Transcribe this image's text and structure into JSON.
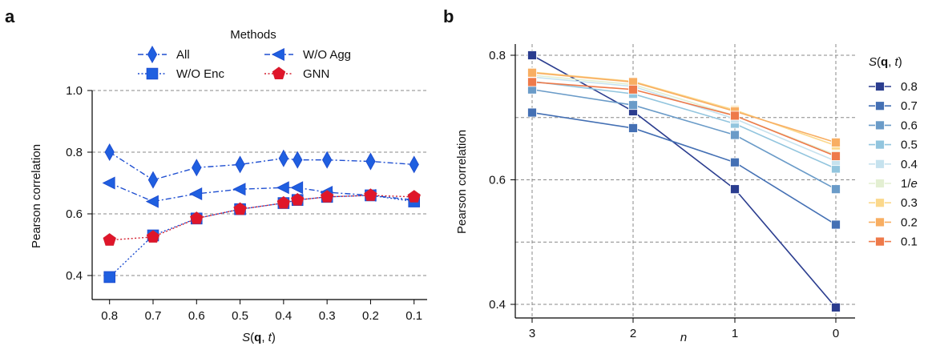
{
  "chart_data": [
    {
      "panel": "a",
      "type": "line",
      "xlabel_parts": [
        "S",
        "(",
        "q",
        ", ",
        "t",
        ")"
      ],
      "ylabel": "Pearson correlation",
      "x_reversed": true,
      "xlim": [
        0.84,
        0.07
      ],
      "ylim": [
        0.3,
        1.0
      ],
      "xticks": [
        0.8,
        0.7,
        0.6,
        0.5,
        0.4,
        0.3,
        0.2,
        0.1
      ],
      "xtick_labels": [
        "0.8",
        "0.7",
        "0.6",
        "0.5",
        "0.4",
        "0.3",
        "0.2",
        "0.1"
      ],
      "yticks": [
        0.4,
        0.6,
        0.8,
        1.0
      ],
      "ytick_labels": [
        "0.4",
        "0.6",
        "0.8",
        "1.0"
      ],
      "grid": "horizontal dashed",
      "x": [
        0.8,
        0.7,
        0.6,
        0.5,
        0.4,
        0.368,
        0.3,
        0.2,
        0.1
      ],
      "legend_title": "Methods",
      "legend_placement": "top",
      "series": [
        {
          "name": "All",
          "marker": "diamond",
          "dash": "dashdot",
          "color": "#1f4fd1",
          "fill": "#1f5fe0",
          "values": [
            0.8,
            0.71,
            0.75,
            0.76,
            0.78,
            0.775,
            0.775,
            0.77,
            0.76
          ]
        },
        {
          "name": "W/O Agg",
          "marker": "triangle-left",
          "dash": "dashdot",
          "color": "#1f4fd1",
          "fill": "#1f5fe0",
          "values": [
            0.7,
            0.64,
            0.665,
            0.68,
            0.685,
            0.685,
            0.67,
            0.66,
            0.645
          ]
        },
        {
          "name": "W/O Enc",
          "marker": "square",
          "dash": "dotted",
          "color": "#1f4fd1",
          "fill": "#1f5fe0",
          "values": [
            0.395,
            0.53,
            0.585,
            0.615,
            0.635,
            0.645,
            0.655,
            0.66,
            0.64
          ]
        },
        {
          "name": "GNN",
          "marker": "pentagon",
          "dash": "dotted",
          "color": "#d41f2f",
          "fill": "#e0152a",
          "values": [
            0.515,
            0.525,
            0.585,
            0.615,
            0.635,
            0.645,
            0.655,
            0.66,
            0.655
          ]
        }
      ]
    },
    {
      "panel": "b",
      "type": "line",
      "xlabel": "n",
      "ylabel": "Pearson correlation",
      "x_reversed": true,
      "xlim": [
        3.1,
        -0.1
      ],
      "ylim": [
        0.38,
        0.81
      ],
      "xticks": [
        3,
        2,
        1,
        0
      ],
      "xtick_labels": [
        "3",
        "2",
        "1",
        "0"
      ],
      "yticks": [
        0.4,
        0.6,
        0.8
      ],
      "ytick_labels": [
        "0.4",
        "0.6",
        "0.8"
      ],
      "grid_y": [
        0.4,
        0.5,
        0.6,
        0.7,
        0.8
      ],
      "grid": "both dashed",
      "x": [
        3,
        2,
        1,
        0
      ],
      "legend_title_parts": [
        "S",
        "(",
        "q",
        ", ",
        "t",
        ")"
      ],
      "legend_placement": "right",
      "series": [
        {
          "name": "0.8",
          "color": "#2b3d8f",
          "values": [
            0.8,
            0.71,
            0.585,
            0.395
          ]
        },
        {
          "name": "0.7",
          "color": "#4470b4",
          "values": [
            0.708,
            0.683,
            0.628,
            0.528
          ]
        },
        {
          "name": "0.6",
          "color": "#6a9bc8",
          "values": [
            0.745,
            0.72,
            0.672,
            0.585
          ]
        },
        {
          "name": "0.5",
          "color": "#92c5de",
          "values": [
            0.758,
            0.738,
            0.69,
            0.618
          ]
        },
        {
          "name": "0.4",
          "color": "#c6e2ee",
          "values": [
            0.765,
            0.75,
            0.698,
            0.63
          ]
        },
        {
          "name": "1/e",
          "color": "#e3efd2",
          "values": [
            0.768,
            0.753,
            0.703,
            0.64
          ]
        },
        {
          "name": "0.3",
          "color": "#fbd88c",
          "values": [
            0.773,
            0.758,
            0.712,
            0.655
          ]
        },
        {
          "name": "0.2",
          "color": "#f8ae62",
          "values": [
            0.772,
            0.757,
            0.71,
            0.66
          ]
        },
        {
          "name": "0.1",
          "color": "#ee7a4a",
          "values": [
            0.757,
            0.745,
            0.703,
            0.638
          ]
        }
      ]
    }
  ]
}
